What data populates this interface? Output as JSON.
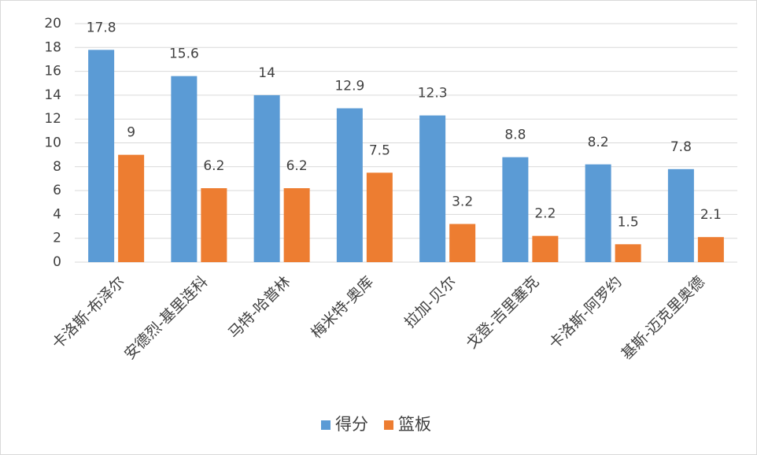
{
  "chart_data": {
    "type": "bar",
    "categories": [
      "卡洛斯-布泽尔",
      "安德烈-基里连科",
      "马特-哈普林",
      "梅米特-奥库",
      "拉加-贝尔",
      "戈登-吉里塞克",
      "卡洛斯-阿罗约",
      "基斯-迈克里奥德"
    ],
    "series": [
      {
        "name": "得分",
        "color": "#5b9bd5",
        "values": [
          17.8,
          15.6,
          14,
          12.9,
          12.3,
          8.8,
          8.2,
          7.8
        ]
      },
      {
        "name": "篮板",
        "color": "#ed7d31",
        "values": [
          9,
          6.2,
          6.2,
          7.5,
          3.2,
          2.2,
          1.5,
          2.1
        ]
      }
    ],
    "ylim": [
      0,
      20
    ],
    "yticks": [
      0,
      2,
      4,
      6,
      8,
      10,
      12,
      14,
      16,
      18,
      20
    ],
    "grid": true,
    "legend": "bottom"
  }
}
